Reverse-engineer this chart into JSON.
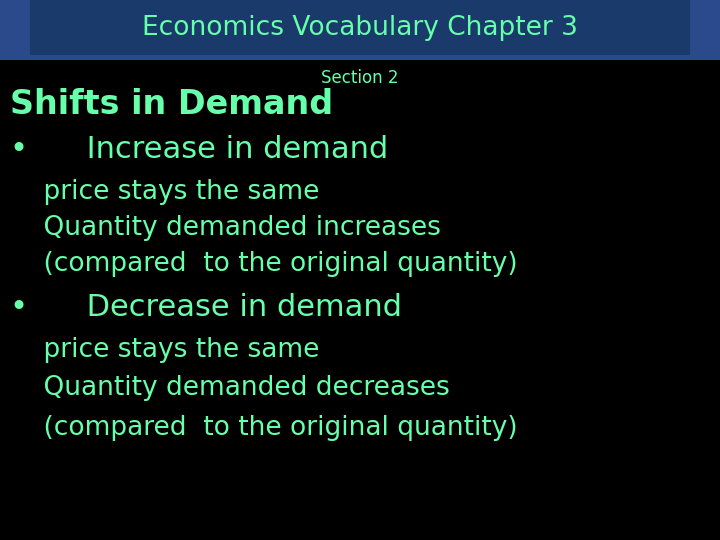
{
  "background_color": "#000000",
  "header_bg_color": "#1a3a6b",
  "header_side_color": "#2a4a8b",
  "header_text": "Economics Vocabulary Chapter 3",
  "header_text_color": "#66ffaa",
  "section_text": "Section 2",
  "section_text_color": "#66ffaa",
  "main_text_color": "#66ffaa",
  "title_line": "Shifts in Demand",
  "bullet1_header": "•      Increase in demand",
  "bullet1_line1": "    price stays the same",
  "bullet1_line2": "    Quantity demanded increases",
  "bullet1_line3": "    (compared  to the original quantity)",
  "bullet2_header": "•      Decrease in demand",
  "bullet2_line1": "    price stays the same",
  "bullet2_line2": "    Quantity demanded decreases",
  "bullet2_line3": "    (compared  to the original quantity)",
  "header_fontsize": 19,
  "section_fontsize": 12,
  "title_fontsize": 24,
  "bullet_header_fontsize": 22,
  "body_fontsize": 19,
  "fig_width": 7.2,
  "fig_height": 5.4,
  "dpi": 100
}
